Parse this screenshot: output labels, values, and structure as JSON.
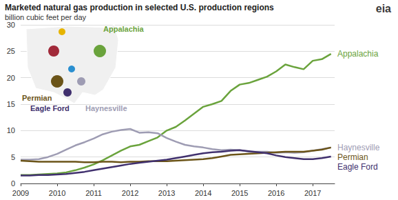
{
  "chart_data": {
    "type": "line",
    "title": "Marketed natural gas production in selected U.S. production regions",
    "subtitle": "billion cubic feet per day",
    "x": [
      2009,
      2009.25,
      2009.5,
      2009.75,
      2010,
      2010.25,
      2010.5,
      2010.75,
      2011,
      2011.25,
      2011.5,
      2011.75,
      2012,
      2012.25,
      2012.5,
      2012.75,
      2013,
      2013.25,
      2013.5,
      2013.75,
      2014,
      2014.25,
      2014.5,
      2014.75,
      2015,
      2015.25,
      2015.5,
      2015.75,
      2016,
      2016.25,
      2016.5,
      2016.75,
      2017,
      2017.25,
      2017.5
    ],
    "series": [
      {
        "name": "Appalachia",
        "color": "#6aa33c",
        "values": [
          1.6,
          1.6,
          1.7,
          1.8,
          1.9,
          2.1,
          2.5,
          3.0,
          3.6,
          4.4,
          5.3,
          6.2,
          7.0,
          7.3,
          8.0,
          8.7,
          10.0,
          10.7,
          11.9,
          13.2,
          14.5,
          15.0,
          15.6,
          17.5,
          18.7,
          19.0,
          19.6,
          20.2,
          21.2,
          22.5,
          22.0,
          21.6,
          23.2,
          23.5,
          24.5
        ]
      },
      {
        "name": "Haynesville",
        "color": "#9e9cb3",
        "values": [
          4.5,
          4.5,
          4.6,
          5.0,
          5.6,
          6.4,
          7.2,
          7.8,
          8.5,
          9.3,
          9.8,
          10.1,
          10.3,
          9.6,
          9.7,
          9.5,
          8.6,
          7.9,
          7.3,
          7.0,
          6.8,
          6.5,
          6.3,
          6.4,
          6.3,
          6.0,
          6.0,
          6.0,
          5.8,
          5.9,
          5.8,
          5.9,
          6.2,
          6.5,
          6.8
        ]
      },
      {
        "name": "Permian",
        "color": "#6b5418",
        "values": [
          4.3,
          4.2,
          4.1,
          4.1,
          4.1,
          4.1,
          4.1,
          4.0,
          4.0,
          4.1,
          4.1,
          4.0,
          4.1,
          4.1,
          4.2,
          4.2,
          4.2,
          4.3,
          4.4,
          4.5,
          4.6,
          4.8,
          5.1,
          5.4,
          5.5,
          5.6,
          5.7,
          5.8,
          5.9,
          6.0,
          6.0,
          6.0,
          6.2,
          6.4,
          6.8
        ]
      },
      {
        "name": "Eagle Ford",
        "color": "#40306e",
        "values": [
          1.5,
          1.5,
          1.6,
          1.6,
          1.7,
          1.8,
          2.0,
          2.2,
          2.5,
          2.8,
          3.1,
          3.4,
          3.7,
          3.9,
          4.1,
          4.3,
          4.5,
          4.8,
          5.1,
          5.4,
          5.7,
          5.9,
          6.0,
          6.2,
          6.3,
          6.1,
          5.9,
          5.7,
          5.3,
          5.0,
          4.8,
          4.6,
          4.6,
          4.8,
          5.1
        ]
      }
    ],
    "xlim": [
      2009,
      2017.6
    ],
    "xticks": [
      2009,
      2010,
      2011,
      2012,
      2013,
      2014,
      2015,
      2016,
      2017
    ],
    "ylim": [
      0,
      30
    ],
    "yticks": [
      0,
      5,
      10,
      15,
      20,
      25,
      30
    ],
    "grid": true,
    "annotations": [
      "eia"
    ]
  }
}
